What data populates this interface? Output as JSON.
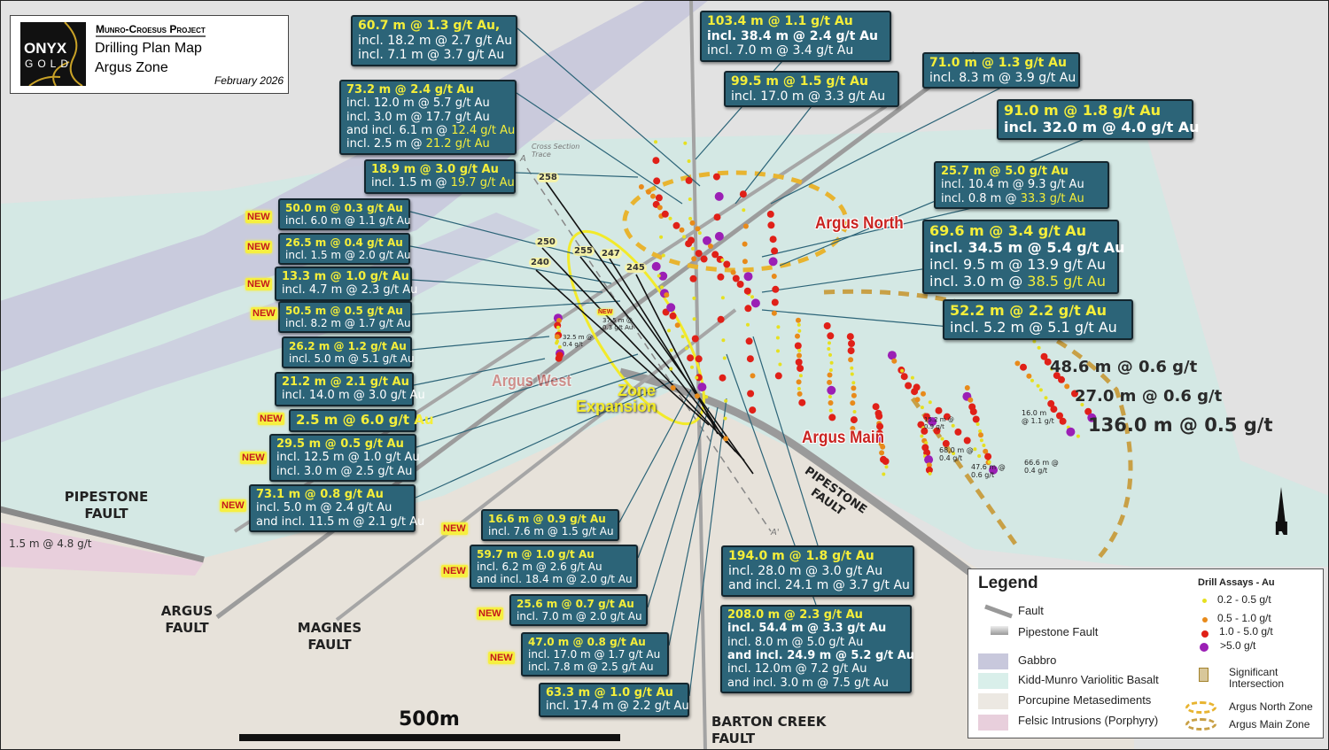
{
  "title": {
    "project": "Munro-Croesus Project",
    "map_name": "Drilling Plan Map",
    "zone": "Argus Zone",
    "date": "February 2026",
    "logo_text_1": "ONYX",
    "logo_text_2": "GOLD"
  },
  "colors": {
    "callout_bg": "#2c6478",
    "highlight": "#f4ee3a",
    "gabbro": "#c8c8dc",
    "basalt": "#d3e8e4",
    "metasediments": "#e7e2da",
    "felsic": "#e8cfdc",
    "assay_low": "#e6e020",
    "assay_mid": "#e88a1a",
    "assay_high": "#e02018",
    "assay_very_high": "#9b1fb5"
  },
  "new_badge": "NEW",
  "callouts": [
    {
      "lines": [
        {
          "t": "60.7 m @ 1.3 g/t Au,",
          "s": "head"
        },
        {
          "t": "incl. 18.2 m @ 2.7 g/t Au"
        },
        {
          "t": "incl. 7.1 m @ 3.7 g/t Au"
        }
      ]
    },
    {
      "lines": [
        {
          "t": "73.2 m @ 2.4 g/t Au",
          "s": "head"
        },
        {
          "t": "incl. 12.0 m @ 5.7 g/t Au"
        },
        {
          "t": "incl. 3.0 m @ 17.7 g/t Au"
        },
        {
          "t": "and incl. 6.1 m @ ",
          "h": "12.4 g/t Au"
        },
        {
          "t": "incl. 2.5 m @ ",
          "h": "21.2 g/t Au"
        }
      ]
    },
    {
      "lines": [
        {
          "t": "18.9 m @ 3.0 g/t Au",
          "s": "head"
        },
        {
          "t": "incl. 1.5 m @ ",
          "h": "19.7 g/t Au"
        }
      ]
    },
    {
      "lines": [
        {
          "t": "103.4 m @ 1.1 g/t Au",
          "s": "head"
        },
        {
          "t": "incl. 38.4 m @ 2.4 g/t Au",
          "s": "bold"
        },
        {
          "t": "incl. 7.0 m @ 3.4 g/t Au"
        }
      ]
    },
    {
      "lines": [
        {
          "t": "99.5 m @ 1.5 g/t Au",
          "s": "head"
        },
        {
          "t": "incl. 17.0 m @ 3.3 g/t Au"
        }
      ]
    },
    {
      "lines": [
        {
          "t": "71.0 m @ 1.3 g/t Au",
          "s": "head"
        },
        {
          "t": "incl. 8.3 m @ 3.9 g/t Au"
        }
      ]
    },
    {
      "lines": [
        {
          "t": "91.0 m @ 1.8 g/t Au",
          "s": "head"
        },
        {
          "t": "incl. 32.0 m @ 4.0 g/t Au",
          "s": "bold"
        }
      ]
    },
    {
      "lines": [
        {
          "t": "25.7 m @ 5.0 g/t Au",
          "s": "head"
        },
        {
          "t": "incl. 10.4 m @ 9.3 g/t Au"
        },
        {
          "t": "incl. 0.8 m @ ",
          "h": "33.3 g/t Au"
        }
      ]
    },
    {
      "lines": [
        {
          "t": "69.6 m @ 3.4 g/t Au",
          "s": "head"
        },
        {
          "t": "incl. 34.5 m @ 5.4 g/t Au",
          "s": "bold"
        },
        {
          "t": "incl. 9.5 m @ 13.9 g/t Au"
        },
        {
          "t": "incl. 3.0 m @ ",
          "h": "38.5 g/t Au"
        }
      ]
    },
    {
      "lines": [
        {
          "t": "52.2 m @ 2.2 g/t Au",
          "s": "head"
        },
        {
          "t": "incl. 5.2 m @ 5.1 g/t Au"
        }
      ]
    },
    {
      "new": true,
      "lines": [
        {
          "t": "50.0 m @ 0.3 g/t Au",
          "s": "head"
        },
        {
          "t": "incl. 6.0 m @ 1.1 g/t Au"
        }
      ]
    },
    {
      "new": true,
      "lines": [
        {
          "t": "26.5 m @ 0.4 g/t Au",
          "s": "head"
        },
        {
          "t": "incl. 1.5 m @ 2.0 g/t Au"
        }
      ]
    },
    {
      "new": true,
      "lines": [
        {
          "t": "13.3 m @ 1.0 g/t Au",
          "s": "head"
        },
        {
          "t": "incl. 4.7 m @ 2.3 g/t Au"
        }
      ]
    },
    {
      "new": true,
      "lines": [
        {
          "t": "50.5 m @ 0.5 g/t Au",
          "s": "head"
        },
        {
          "t": "incl. 8.2 m @ 1.7 g/t Au"
        }
      ]
    },
    {
      "lines": [
        {
          "t": "26.2 m @ 1.2 g/t Au",
          "s": "head"
        },
        {
          "t": "incl. 5.0 m @ 5.1 g/t Au"
        }
      ]
    },
    {
      "lines": [
        {
          "t": "21.2 m @ 2.1 g/t Au",
          "s": "head"
        },
        {
          "t": "incl. 14.0 m @ 3.0 g/t Au"
        }
      ]
    },
    {
      "new": true,
      "lines": [
        {
          "t": "2.5 m @ 6.0 g/t Au",
          "s": "head"
        }
      ]
    },
    {
      "new": true,
      "lines": [
        {
          "t": "29.5 m @ 0.5 g/t Au",
          "s": "head"
        },
        {
          "t": "incl. 12.5 m @ 1.0 g/t Au"
        },
        {
          "t": "incl. 3.0 m @ 2.5 g/t Au"
        }
      ]
    },
    {
      "new": true,
      "lines": [
        {
          "t": "73.1 m @ 0.8 g/t Au",
          "s": "head"
        },
        {
          "t": "incl. 5.0 m @ 2.4 g/t Au"
        },
        {
          "t": "and incl. 11.5 m @ 2.1 g/t Au"
        }
      ]
    },
    {
      "new": true,
      "lines": [
        {
          "t": "16.6 m @ 0.9 g/t Au",
          "s": "head"
        },
        {
          "t": "incl. 7.6 m @ 1.5 g/t Au"
        }
      ]
    },
    {
      "new": true,
      "lines": [
        {
          "t": "59.7 m @ 1.0 g/t Au",
          "s": "head"
        },
        {
          "t": "incl. 6.2 m @ 2.6 g/t Au"
        },
        {
          "t": "and incl. 18.4 m @ 2.0 g/t Au"
        }
      ]
    },
    {
      "new": true,
      "lines": [
        {
          "t": "25.6 m @ 0.7 g/t Au",
          "s": "head"
        },
        {
          "t": "incl. 7.0 m @ 2.0 g/t Au"
        }
      ]
    },
    {
      "new": true,
      "lines": [
        {
          "t": "47.0 m @ 0.8 g/t Au",
          "s": "head"
        },
        {
          "t": "incl. 17.0 m @ 1.7 g/t Au"
        },
        {
          "t": "incl. 7.8 m @ 2.5 g/t Au"
        }
      ]
    },
    {
      "lines": [
        {
          "t": "63.3 m @ 1.0 g/t Au",
          "s": "head"
        },
        {
          "t": "incl. 17.4 m @ 2.2 g/t Au"
        }
      ]
    },
    {
      "lines": [
        {
          "t": "194.0 m @ 1.8 g/t Au",
          "s": "head"
        },
        {
          "t": "incl. 28.0 m @ 3.0 g/t Au"
        },
        {
          "t": "and incl. 24.1 m @ 3.7 g/t Au"
        }
      ]
    },
    {
      "lines": [
        {
          "t": "208.0 m @ 2.3 g/t Au",
          "s": "head"
        },
        {
          "t": "incl. 54.4 m @ 3.3 g/t Au",
          "s": "bold"
        },
        {
          "t": "incl. 8.0 m @ 5.0 g/t Au"
        },
        {
          "t": "and incl. 24.9 m @ 5.2 g/t Au",
          "s": "bold"
        },
        {
          "t": "incl. 12.0m @ 7.2 g/t Au"
        },
        {
          "t": "and incl. 3.0 m @ 7.5 g/t Au"
        }
      ]
    }
  ],
  "zones": {
    "argus_north": "Argus North",
    "argus_main": "Argus Main",
    "argus_west": "Argus West",
    "zone_expansion": "Zone Expansion"
  },
  "faults": {
    "pipestone_left": "PIPESTONE FAULT",
    "pipestone_center": "PIPESTONE FAULT",
    "argus": "ARGUS FAULT",
    "magnes": "MAGNES FAULT",
    "barton_creek": "BARTON CREEK FAULT"
  },
  "map_labels": {
    "left_intercept": "1.5 m @ 4.8 g/t",
    "east_1": "48.6 m @ 0.6 g/t",
    "east_2": "27.0 m @ 0.6 g/t",
    "east_3": "136.0 m @ 0.5 g/t",
    "small_1": "15.2 m @\n0.9 g/t",
    "small_2": "68.0 m @\n0.4 g/t",
    "small_3": "47.6 m @\n0.6 g/t",
    "small_4": "16.0 m\n@ 1.1 g/t",
    "small_5": "66.6 m @\n0.4 g/t",
    "small_6": "32.5 m @\n0.4 g/t",
    "small_7": "37.5 m @\n0.3 g/t Au",
    "small_7_new": "NEW",
    "cross_section": "Cross Section\nTrace",
    "section_a": "A",
    "section_a_prime": "A'"
  },
  "drill_holes": [
    "258",
    "250",
    "255",
    "247",
    "245",
    "240"
  ],
  "scale_bar": "500m",
  "north": "N",
  "legend": {
    "title": "Legend",
    "fault": "Fault",
    "pipestone_fault": "Pipestone Fault",
    "gabbro": "Gabbro",
    "basalt": "Kidd-Munro Variolitic Basalt",
    "metasediments": "Porcupine Metasediments",
    "felsic": "Felsic Intrusions (Porphyry)",
    "assays_title": "Drill Assays - Au",
    "assay_1": "0.2 - 0.5 g/t",
    "assay_2": "0.5 - 1.0 g/t",
    "assay_3": "1.0 - 5.0 g/t",
    "assay_4": ">5.0 g/t",
    "significant": "Significant\nIntersection",
    "north_zone": "Argus North Zone",
    "main_zone": "Argus Main Zone"
  }
}
